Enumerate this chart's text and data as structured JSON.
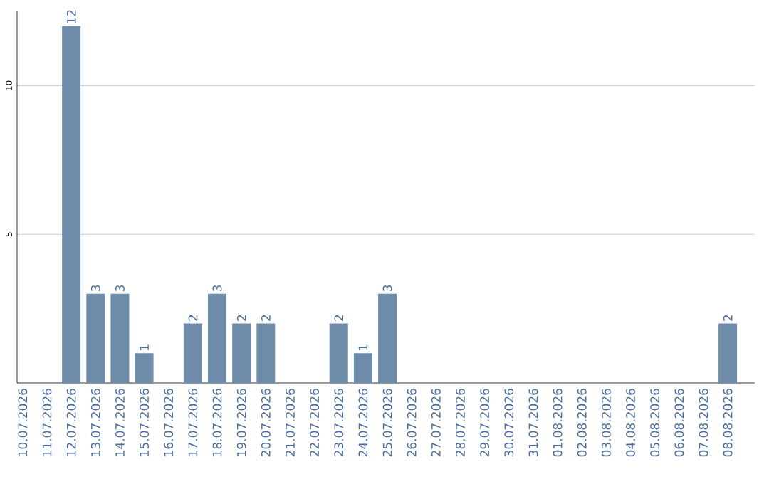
{
  "chart_data": {
    "type": "bar",
    "categories": [
      "10.07.2026",
      "11.07.2026",
      "12.07.2026",
      "13.07.2026",
      "14.07.2026",
      "15.07.2026",
      "16.07.2026",
      "17.07.2026",
      "18.07.2026",
      "19.07.2026",
      "20.07.2026",
      "21.07.2026",
      "22.07.2026",
      "23.07.2026",
      "24.07.2026",
      "25.07.2026",
      "26.07.2026",
      "27.07.2026",
      "28.07.2026",
      "29.07.2026",
      "30.07.2026",
      "31.07.2026",
      "01.08.2026",
      "02.08.2026",
      "03.08.2026",
      "04.08.2026",
      "05.08.2026",
      "06.08.2026",
      "07.08.2026",
      "08.08.2026"
    ],
    "values": [
      0,
      0,
      12,
      3,
      3,
      1,
      0,
      2,
      3,
      2,
      2,
      0,
      0,
      2,
      1,
      3,
      0,
      0,
      0,
      0,
      0,
      0,
      0,
      0,
      0,
      0,
      0,
      0,
      0,
      2
    ],
    "value_labels": [
      null,
      null,
      "12",
      "3",
      "3",
      "1",
      null,
      "2",
      "3",
      "2",
      "2",
      null,
      null,
      "2",
      "1",
      "3",
      null,
      null,
      null,
      null,
      null,
      null,
      null,
      null,
      null,
      null,
      null,
      null,
      null,
      "2"
    ],
    "color": "#6e8caa",
    "ylim": [
      0,
      12.5
    ],
    "yticks": [
      5,
      10
    ],
    "grid": "y"
  }
}
